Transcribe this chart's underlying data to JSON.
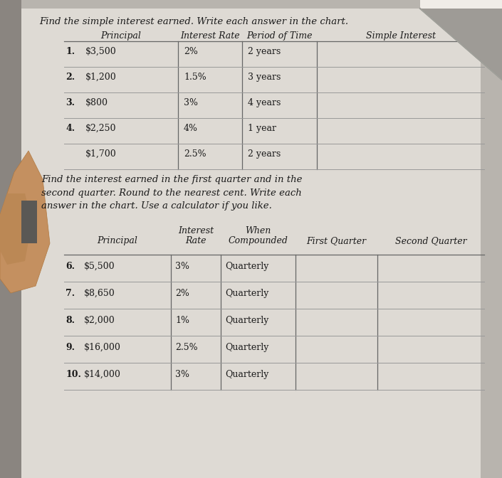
{
  "bg_color": "#b8b4ae",
  "page_bg": "#dedad4",
  "title1": "Find the simple interest earned. Write each answer in the chart.",
  "table1_headers": [
    "Principal",
    "Interest Rate",
    "Period of Time",
    "Simple Interest"
  ],
  "table1_rows": [
    [
      "1.",
      "$3,500",
      "2%",
      "2 years"
    ],
    [
      "2.",
      "$1,200",
      "1.5%",
      "3 years"
    ],
    [
      "3.",
      "$800",
      "3%",
      "4 years"
    ],
    [
      "4.",
      "$2,250",
      "4%",
      "1 year"
    ],
    [
      "",
      "$1,700",
      "2.5%",
      "2 years"
    ]
  ],
  "title2": "Find the interest earned in the first quarter and in the\nsecond quarter. Round to the nearest cent. Write each\nanswer in the chart. Use a calculator if you like.",
  "table2_rows": [
    [
      "6.",
      "$5,500",
      "3%",
      "Quarterly"
    ],
    [
      "7.",
      "$8,650",
      "2%",
      "Quarterly"
    ],
    [
      "8.",
      "$2,000",
      "1%",
      "Quarterly"
    ],
    [
      "9.",
      "$16,000",
      "2.5%",
      "Quarterly"
    ],
    [
      "10.",
      "$14,000",
      "3%",
      "Quarterly"
    ]
  ],
  "font_size_title": 9.5,
  "font_size_table": 9,
  "font_size_header": 9,
  "text_color": "#1a1a1a",
  "line_color": "#666666",
  "finger_color": "#c4956a",
  "fold_color": "#a0a09a"
}
